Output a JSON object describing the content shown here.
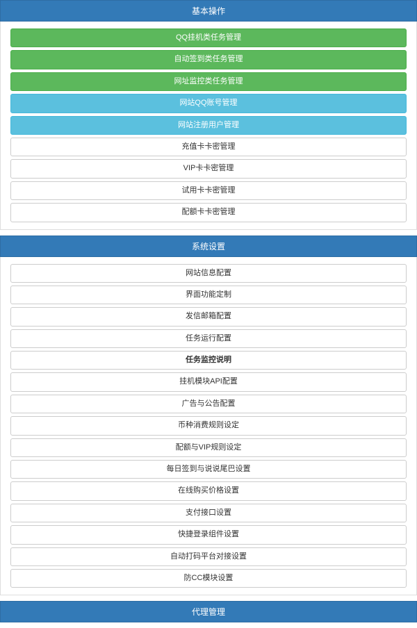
{
  "sections": [
    {
      "title": "基本操作",
      "items": [
        {
          "label": "QQ挂机类任务管理",
          "style": "green"
        },
        {
          "label": "自动签到类任务管理",
          "style": "green"
        },
        {
          "label": "网址监控类任务管理",
          "style": "green"
        },
        {
          "label": "网站QQ账号管理",
          "style": "blue"
        },
        {
          "label": "网站注册用户管理",
          "style": "blue"
        },
        {
          "label": "充值卡卡密管理",
          "style": "white"
        },
        {
          "label": "VIP卡卡密管理",
          "style": "white"
        },
        {
          "label": "试用卡卡密管理",
          "style": "white"
        },
        {
          "label": "配额卡卡密管理",
          "style": "white"
        }
      ]
    },
    {
      "title": "系统设置",
      "items": [
        {
          "label": "网站信息配置",
          "style": "white"
        },
        {
          "label": "界面功能定制",
          "style": "white"
        },
        {
          "label": "发信邮箱配置",
          "style": "white"
        },
        {
          "label": "任务运行配置",
          "style": "white"
        },
        {
          "label": "任务监控说明",
          "style": "white",
          "bold": true
        },
        {
          "label": "挂机模块API配置",
          "style": "white"
        },
        {
          "label": "广告与公告配置",
          "style": "white"
        },
        {
          "label": "币种消费规则设定",
          "style": "white"
        },
        {
          "label": "配额与VIP规则设定",
          "style": "white"
        },
        {
          "label": "每日签到与说说尾巴设置",
          "style": "white"
        },
        {
          "label": "在线购买价格设置",
          "style": "white"
        },
        {
          "label": "支付接口设置",
          "style": "white"
        },
        {
          "label": "快捷登录组件设置",
          "style": "white"
        },
        {
          "label": "自动打码平台对接设置",
          "style": "white"
        },
        {
          "label": "防CC模块设置",
          "style": "white"
        }
      ]
    },
    {
      "title": "代理管理",
      "items": []
    }
  ],
  "colors": {
    "header_bg": "#337ab7",
    "header_border": "#2e6da4",
    "green_bg": "#5cb85c",
    "green_border": "#4cae4c",
    "blue_bg": "#5bc0de",
    "blue_border": "#46b8da",
    "white_bg": "#ffffff",
    "white_border": "#cccccc",
    "panel_border": "#dddddd"
  }
}
